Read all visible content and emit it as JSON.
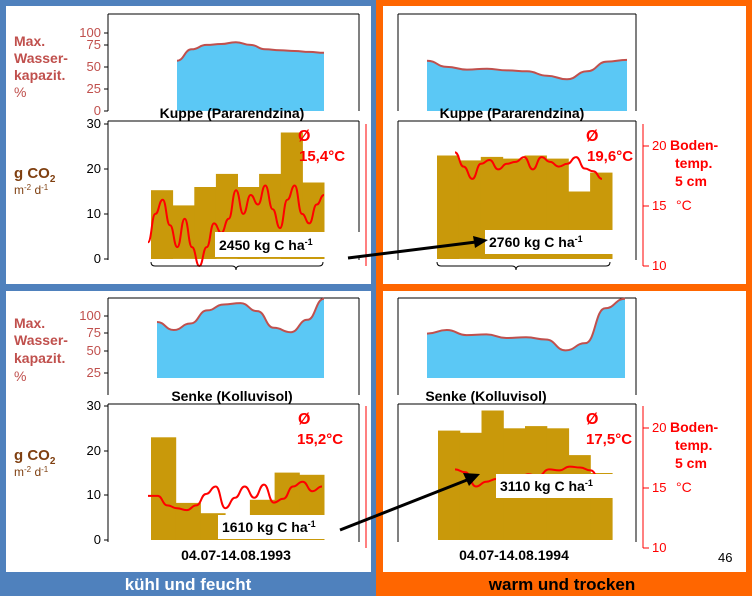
{
  "colors": {
    "left_bg": "#4f81bd",
    "right_bg": "#ff6600",
    "bars": "#c9990a",
    "water_fill": "#5bc8f5",
    "water_line": "#c0504d",
    "temperature": "#ff0000",
    "wasser_label": "#c0504d",
    "co2_label": "#7f3f10"
  },
  "left_label": "kühl und feucht",
  "right_label": "warm und trocken",
  "page_number": "46",
  "labels": {
    "max": "Max.",
    "wasser": "Wasser-",
    "kapazit": "kapazit.",
    "percent": "%",
    "gco2": "g CO",
    "gco2_sub": "2",
    "co2_unit": "m",
    "co2_unit_exp1": "-2",
    "co2_unit_d": " d",
    "co2_unit_exp2": "-1",
    "boden": "Boden-",
    "temp": "temp.",
    "cm": "5 cm",
    "celsius": "°C"
  },
  "chart_data": [
    {
      "type": "area",
      "panel": "top-left water",
      "ylim": [
        0,
        110
      ],
      "yticks": [
        "0",
        "25",
        "50",
        "75",
        "100"
      ],
      "x": [
        0,
        0.1,
        0.2,
        0.3,
        0.4,
        0.5,
        0.6,
        0.7,
        0.8,
        0.9,
        1.0
      ],
      "values": [
        57,
        70,
        75,
        76,
        78,
        75,
        70,
        69,
        68,
        67,
        66
      ]
    },
    {
      "type": "area",
      "panel": "top-right water",
      "ylim": [
        0,
        110
      ],
      "x": [
        0,
        0.1,
        0.2,
        0.3,
        0.4,
        0.5,
        0.6,
        0.7,
        0.8,
        0.9,
        1.0
      ],
      "values": [
        57,
        50,
        47,
        48,
        46,
        45,
        40,
        36,
        45,
        56,
        58
      ]
    },
    {
      "type": "bar",
      "panel": "top-left CO2",
      "title": "Kuppe (Pararendzina)",
      "ylim": [
        0,
        30
      ],
      "yticks": [
        "0",
        "10",
        "20",
        "30"
      ],
      "annotation_mean": "Ø",
      "annotation_temp": "15,4°C",
      "total_prefix": "2450 kg C ha",
      "total_exp": "-1",
      "bars": [
        15.3,
        11.9,
        16.0,
        18.9,
        16.0,
        18.9,
        28.1,
        17.0
      ],
      "temperature_ylim": [
        10,
        25
      ],
      "temperature": [
        12.5,
        15.5,
        17.0,
        14.3,
        12.0,
        15.0,
        12.0,
        10.0,
        12.0,
        14.5,
        13.5,
        15.0,
        18.0,
        15.5,
        17.5,
        16.5,
        18.5,
        16.0,
        14.0,
        17.0,
        18.5,
        15.5,
        14.5,
        16.5,
        17.5
      ]
    },
    {
      "type": "bar",
      "panel": "top-right CO2",
      "title": "Kuppe (Pararendzina)",
      "ylim": [
        0,
        30
      ],
      "annotation_mean": "Ø",
      "annotation_temp": "19,6°C",
      "total_prefix": "2760 kg C ha",
      "total_exp": "-1",
      "bars": [
        23.0,
        21.9,
        22.7,
        22.3,
        23.0,
        22.3,
        15.0,
        19.2
      ],
      "temperature_ylim": [
        10,
        25
      ],
      "temperature_yticks": [
        "10",
        "15",
        "20"
      ],
      "temperature": [
        22.0,
        20.5,
        19.2,
        20.8,
        21.2,
        20.2,
        20.8,
        21.0,
        21.5,
        20.2,
        21.5,
        21.0,
        20.5,
        20.8,
        21.5,
        20.3,
        20.0,
        19.2
      ]
    },
    {
      "type": "area",
      "panel": "bottom-left water",
      "ylim": [
        0,
        110
      ],
      "yticks": [
        "25",
        "50",
        "75",
        "100"
      ],
      "x": [
        0,
        0.1,
        0.2,
        0.3,
        0.4,
        0.5,
        0.6,
        0.7,
        0.8,
        0.9,
        1.0
      ],
      "values": [
        77,
        66,
        75,
        93,
        101,
        103,
        92,
        69,
        63,
        80,
        109
      ]
    },
    {
      "type": "area",
      "panel": "bottom-right water",
      "ylim": [
        0,
        110
      ],
      "x": [
        0,
        0.1,
        0.2,
        0.3,
        0.4,
        0.5,
        0.6,
        0.7,
        0.8,
        0.9,
        1.0
      ],
      "values": [
        61,
        66,
        59,
        60,
        55,
        56,
        53,
        38,
        48,
        96,
        109
      ]
    },
    {
      "type": "bar",
      "panel": "bottom-left CO2",
      "title": "Senke (Kolluvisol)",
      "ylim": [
        0,
        30
      ],
      "yticks": [
        "0",
        "10",
        "20",
        "30"
      ],
      "annotation_mean": "Ø",
      "annotation_temp": "15,2°C",
      "total_prefix": "1610 kg C ha",
      "total_exp": "-1",
      "date_range": "04.07-14.08.1993",
      "bars": [
        23.0,
        8.3,
        6.0,
        5.6,
        9.0,
        15.1,
        14.6
      ],
      "temperature_ylim": [
        10,
        25
      ],
      "temperature": [
        15.5,
        15.5,
        14.5,
        14.2,
        14.0,
        14.5,
        15.7,
        16.5,
        14.2,
        15.3,
        16.5,
        15.3,
        16.7,
        14.8,
        15.2,
        16.5,
        17.0,
        16.0,
        16.5
      ]
    },
    {
      "type": "bar",
      "panel": "bottom-right CO2",
      "title": "Senke (Kolluvisol)",
      "ylim": [
        0,
        30
      ],
      "annotation_mean": "Ø",
      "annotation_temp": "17,5°C",
      "total_prefix": "3110 kg C ha",
      "total_exp": "-1",
      "date_range": "04.07-14.08.1994",
      "bars": [
        24.5,
        24.0,
        29.0,
        25.0,
        25.5,
        25.0,
        19.0,
        15.0
      ],
      "temperature_ylim": [
        10,
        25
      ],
      "temperature_yticks": [
        "10",
        "15",
        "20"
      ],
      "temperature": [
        18.3,
        18.0,
        16.5,
        17.0,
        17.3,
        17.6,
        17.2,
        17.8,
        17.6,
        18.3,
        18.2,
        18.6,
        18.5,
        18.2,
        17.0
      ]
    }
  ]
}
